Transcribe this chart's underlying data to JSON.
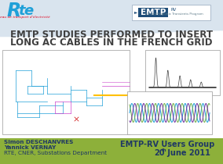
{
  "bg_header_color": "#d9e4ee",
  "bg_main_color": "#ffffff",
  "bg_footer_color": "#8db03a",
  "title_line1": "EMTP STUDIES PERFORMED TO INSERT",
  "title_line2": "LONG AC CABLES IN THE FRENCH GRID",
  "title_color": "#404040",
  "title_fontsize": 8.5,
  "rte_logo_color": "#1fa0d8",
  "rte_text": "Réseau de transport d'électricité",
  "rte_text_color": "#e2001a",
  "emtp_box_facecolor": "#1f4e79",
  "emtp_box_edgecolor": "#1f4e79",
  "emtp_label": "EMTP",
  "emtp_rv": "RV",
  "emtp_sub": "ElectroMagnetic Transients Program",
  "emtp_sub_color": "#607d8b",
  "author_line1": "Simon DESCHANVRES",
  "author_line2": "Yannick VERNAY",
  "author_line3": "RTE, CNER, Substations Department",
  "author_color": "#1f3864",
  "author_fontsize": 5.2,
  "event_line1": "EMTP-RV Users Group",
  "event_line2": "20",
  "event_line2b": "th",
  "event_line2c": " June 2011",
  "event_color": "#1f3864",
  "event_fontsize": 7.0,
  "wave_color_blue": "#1fa0d8",
  "wave_color_green": "#70ad47",
  "wave_color_purple": "#7030a0",
  "cable_color": "#ffc000",
  "circuit_line_color": "#1fa0d8",
  "circuit_magenta": "#cc44cc",
  "circuit_red": "#cc0000"
}
